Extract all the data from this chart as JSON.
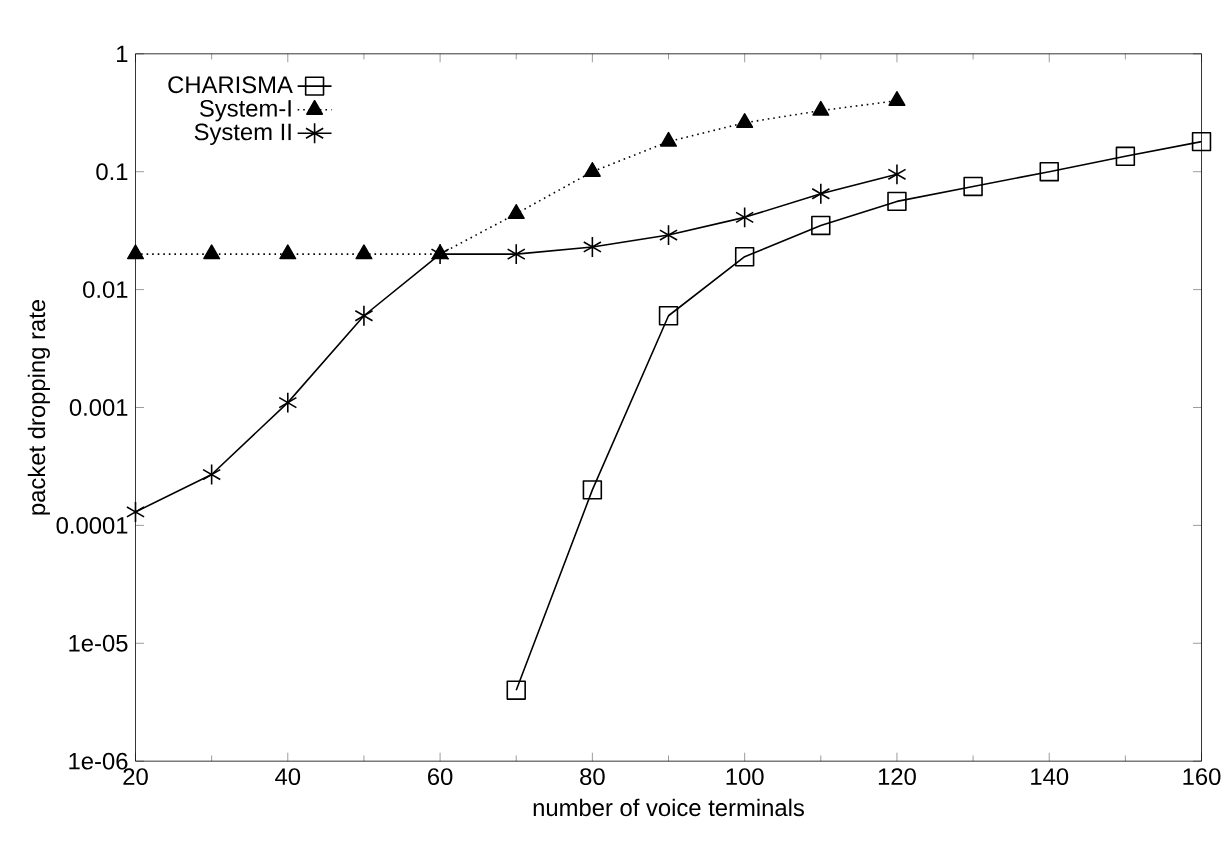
{
  "chart_data": {
    "type": "line",
    "xlabel": "number of voice terminals",
    "ylabel": "packet dropping rate",
    "log": "y",
    "grid": false,
    "legend": "top left",
    "xlim": [
      20,
      160
    ],
    "xticks": [
      20,
      40,
      60,
      80,
      100,
      120,
      140,
      160
    ],
    "ylim": [
      1e-06,
      1
    ],
    "yticks": [
      1,
      0.1,
      0.01,
      0.001,
      0.0001,
      {
        "value": 1e-05,
        "label": "1e-05"
      },
      {
        "value": 1e-06,
        "label": "1e-06"
      }
    ],
    "series": [
      {
        "name": "CHARISMA",
        "color": "#000000",
        "marker": "square",
        "line_style": "solid",
        "x": [
          70,
          80,
          90,
          100,
          110,
          120,
          130,
          140,
          150,
          160
        ],
        "values": [
          4e-06,
          0.0002,
          0.006,
          0.019,
          0.035,
          0.056,
          0.075,
          0.1,
          0.135,
          0.18
        ]
      },
      {
        "name": "System-I",
        "color": "#000000",
        "marker": "triangle",
        "line_style": "dotted",
        "x": [
          20,
          30,
          40,
          50,
          60,
          70,
          80,
          90,
          100,
          110,
          120
        ],
        "values": [
          0.02,
          0.02,
          0.02,
          0.02,
          0.02,
          0.044,
          0.1,
          0.18,
          0.26,
          0.33,
          0.4
        ]
      },
      {
        "name": "System II",
        "color": "#000000",
        "marker": "cross",
        "line_style": "solid",
        "x": [
          20,
          30,
          40,
          50,
          60,
          70,
          80,
          90,
          100,
          110,
          120
        ],
        "values": [
          0.00013,
          0.00027,
          0.0011,
          0.006,
          0.02,
          0.02,
          0.023,
          0.029,
          0.041,
          0.065,
          0.095
        ]
      }
    ]
  }
}
